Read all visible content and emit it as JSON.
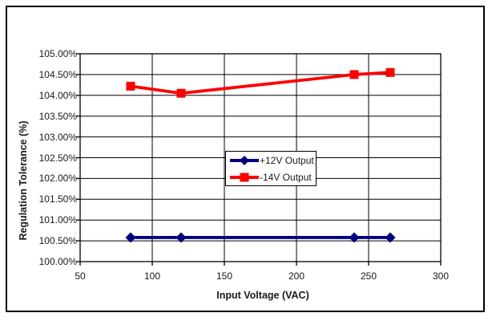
{
  "window": {
    "background_color": "#ffffff",
    "border_color": "#000000"
  },
  "chart_data": {
    "type": "line",
    "title": "",
    "xlabel": "Input Voltage (VAC)",
    "ylabel": "Regulation Tolerance (%)",
    "xlim": [
      50,
      300
    ],
    "ylim": [
      100.0,
      105.0
    ],
    "grid": true,
    "grid_color": "#000000",
    "legend_position": "center",
    "x_ticks": [
      50,
      100,
      150,
      200,
      250,
      300
    ],
    "x_tick_labels": [
      "50",
      "100",
      "150",
      "200",
      "250",
      "300"
    ],
    "y_ticks": [
      100.0,
      100.5,
      101.0,
      101.5,
      102.0,
      102.5,
      103.0,
      103.5,
      104.0,
      104.5,
      105.0
    ],
    "y_tick_labels": [
      "100.00%",
      "100.50%",
      "101.00%",
      "101.50%",
      "102.00%",
      "102.50%",
      "103.00%",
      "103.50%",
      "104.00%",
      "104.50%",
      "105.00%"
    ],
    "x": [
      85,
      120,
      240,
      265
    ],
    "series": [
      {
        "name": "+12V Output",
        "color": "#000080",
        "marker": "diamond",
        "values": [
          100.58,
          100.58,
          100.58,
          100.58
        ]
      },
      {
        "name": "-14V Output",
        "color": "#ff0000",
        "marker": "square",
        "values": [
          104.22,
          104.05,
          104.5,
          104.55
        ]
      }
    ]
  }
}
